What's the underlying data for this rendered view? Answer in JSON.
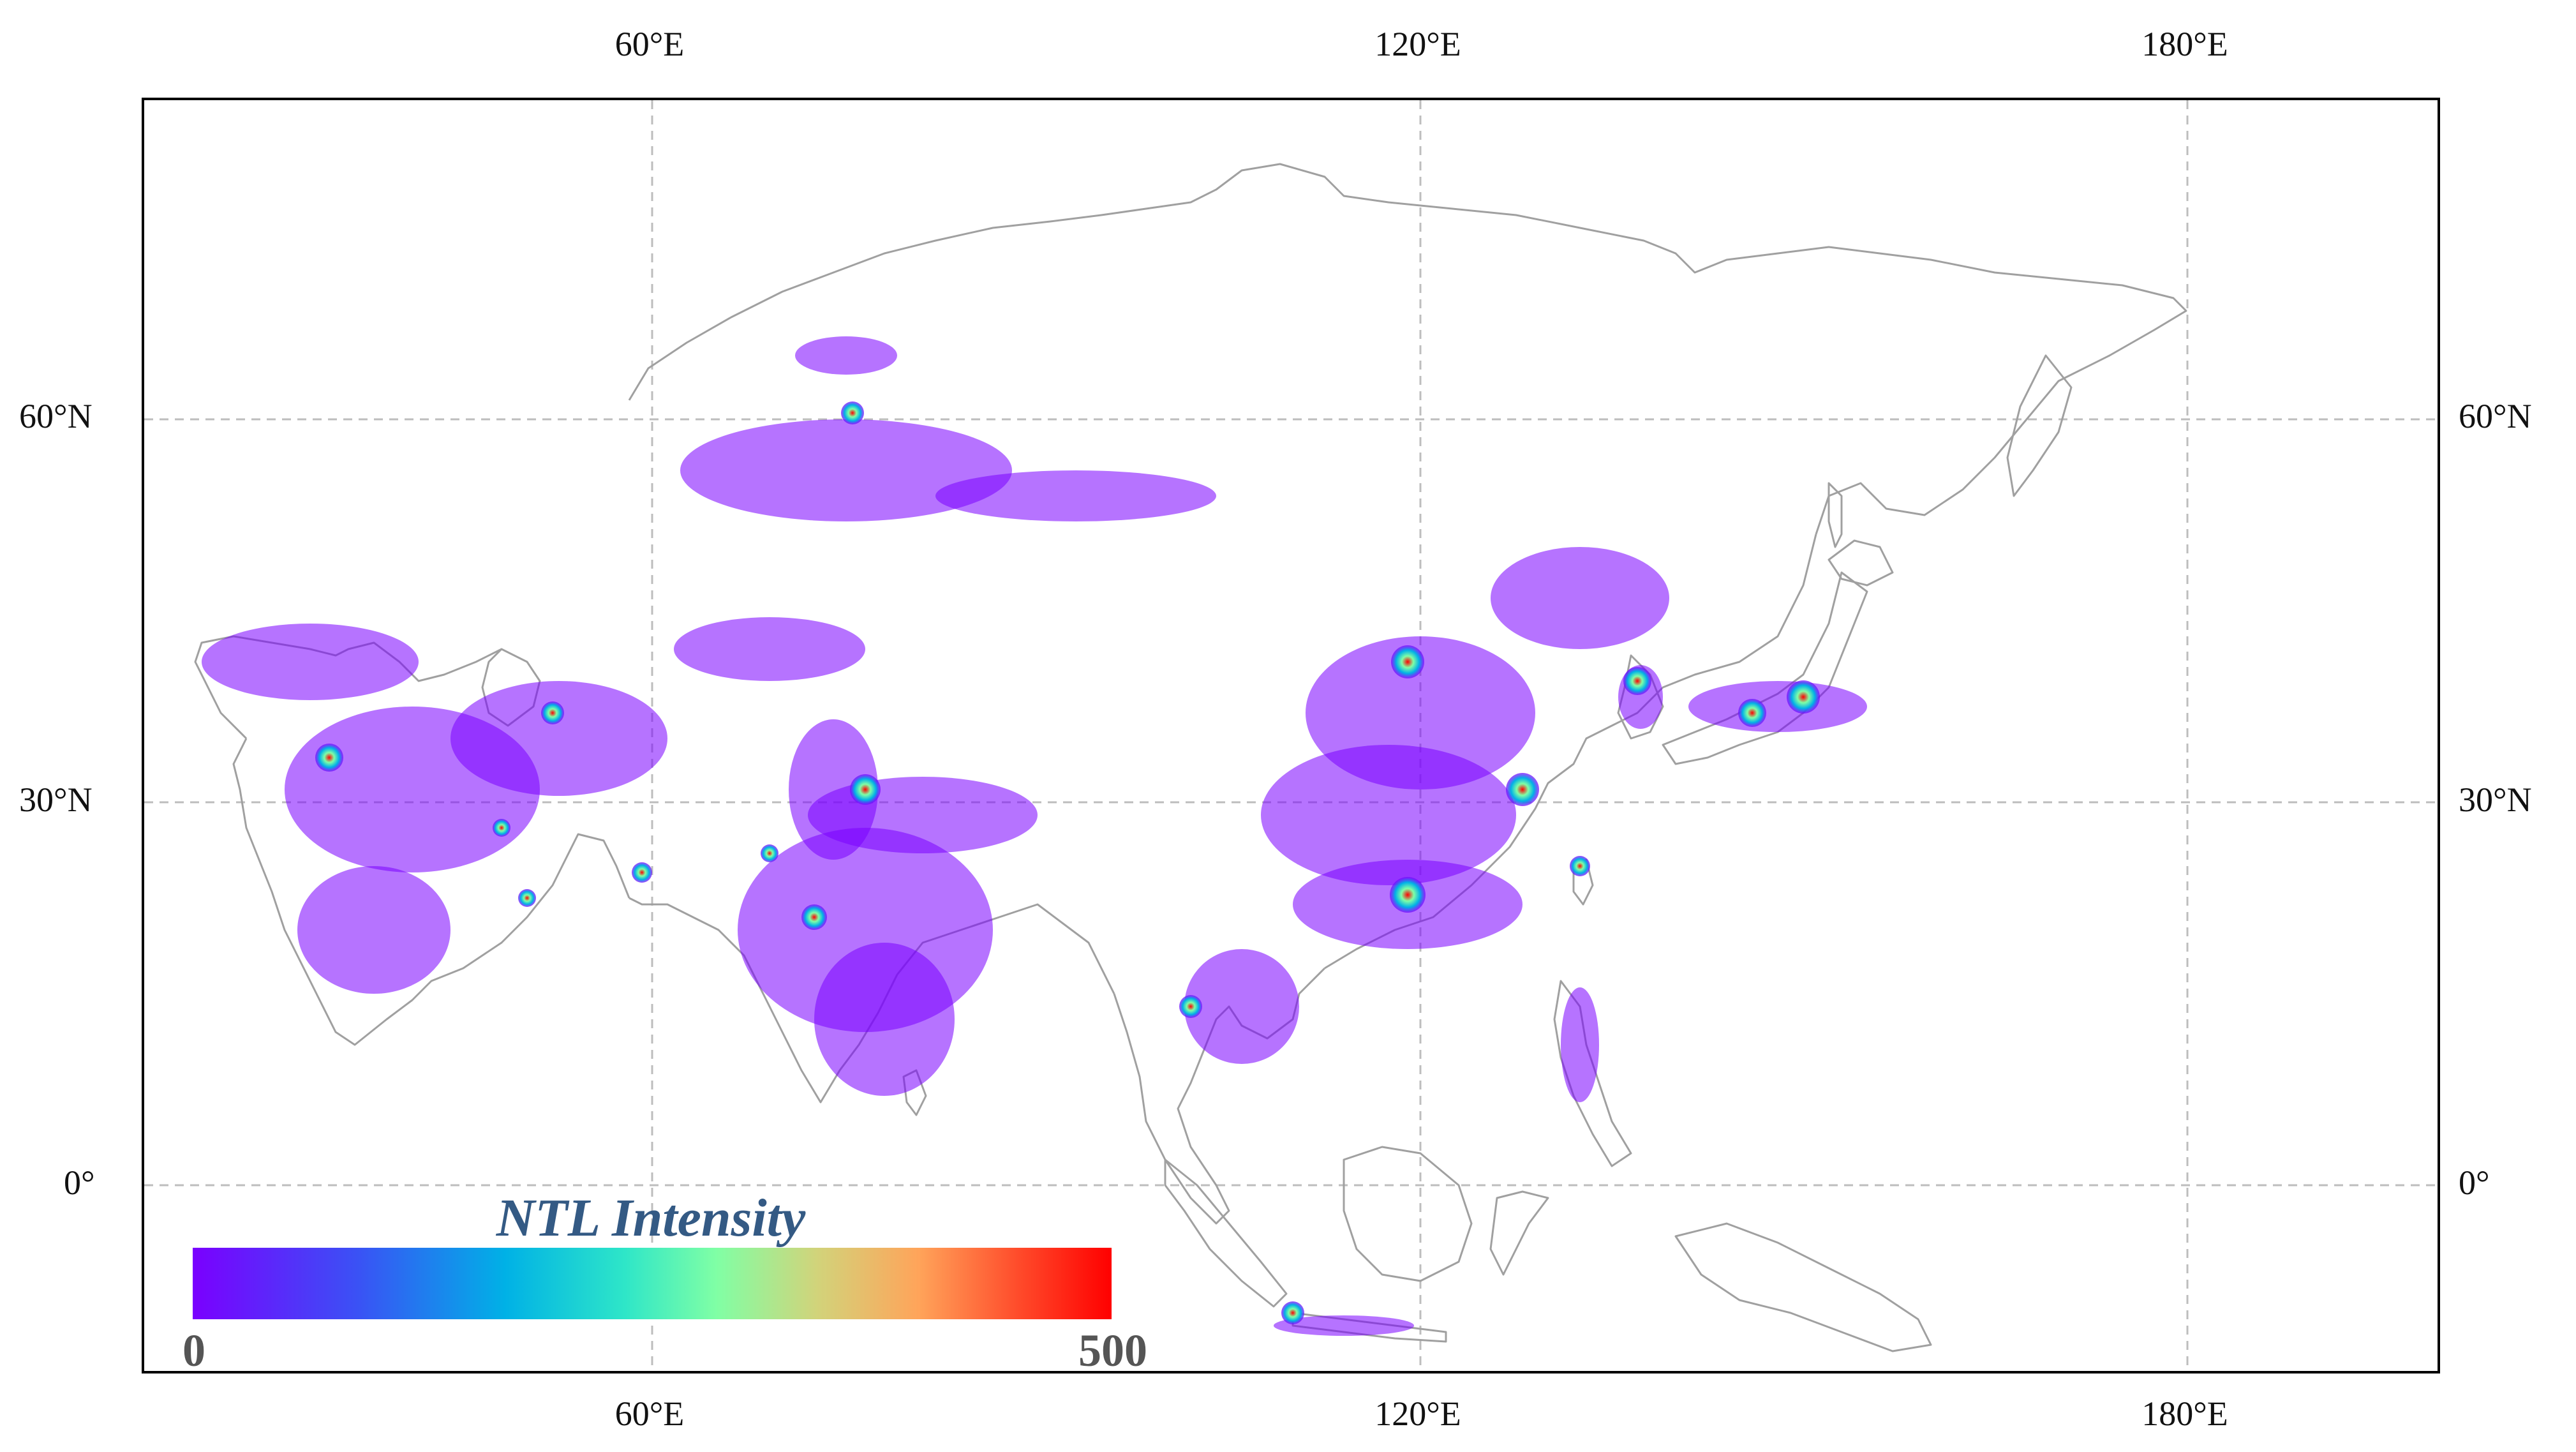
{
  "map": {
    "projection": "PlateCarree",
    "extent": {
      "lon": [
        20,
        200
      ],
      "lat": [
        -15,
        85
      ]
    },
    "gridlines": "dashed",
    "coastline_color": "#9a9a9a",
    "lon_ticks": [
      "60°E",
      "120°E",
      "180°E"
    ],
    "lat_ticks": [
      "60°N",
      "30°N",
      "0°"
    ]
  },
  "legend": {
    "title": "NTL Intensity",
    "min_label": "0",
    "max_label": "500",
    "colormap": "rainbow",
    "colors": [
      "#7a00ff",
      "#00b1e6",
      "#80ffa5",
      "#ffa45a",
      "#ff0000"
    ]
  }
}
